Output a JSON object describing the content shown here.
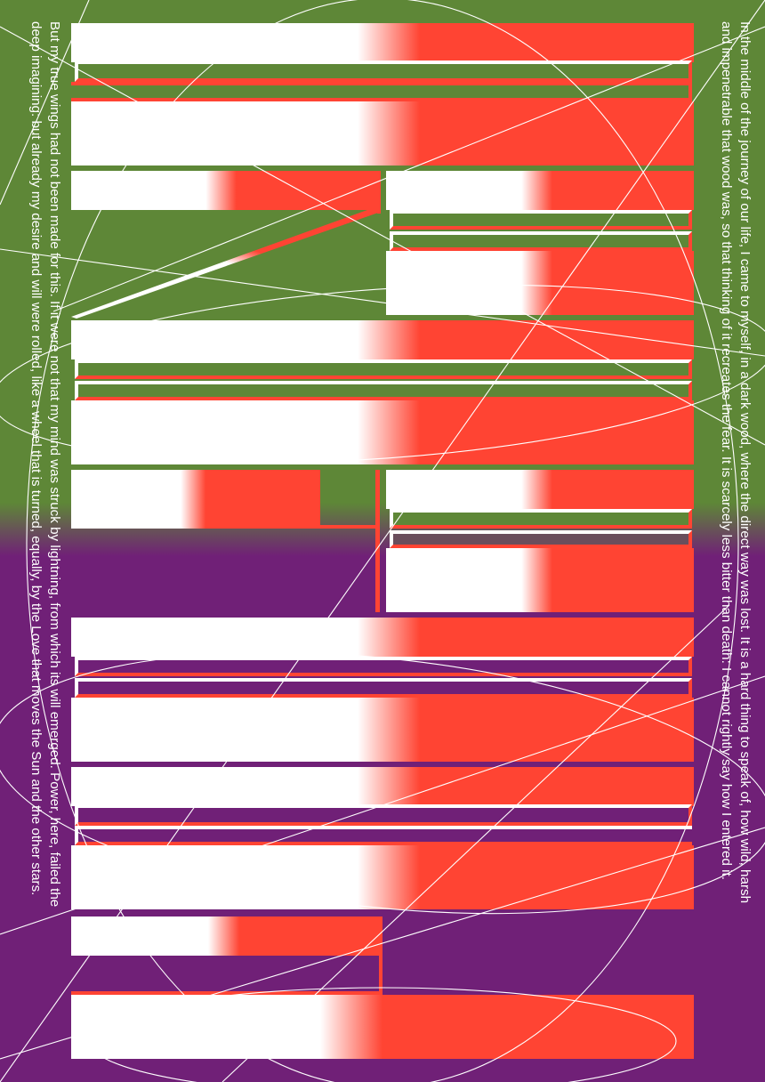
{
  "poster": {
    "colors": {
      "green": "#5e8737",
      "purple": "#702077",
      "red": "#ff4433",
      "white": "#ffffff"
    },
    "right_text": {
      "line1": "In the middle of the journey of our life, I came to myself, in a dark wood, where the direct way was lost. It is a hard thing to speak of, how wild, harsh",
      "line2": "and impenetrable that wood was, so that thinking of it recreates the fear. It is scarcely less bitter than death: I cannot rightly say how I entered it."
    },
    "left_text": {
      "line1": "But my true wings had not been made for this. If it were not that my mind was struck by lightning, from which its will emerged. Power, here, failed the",
      "line2": "deep imagining: but already my desire and will were rolled, like a wheel that is turned, equally, by the Love that moves the Sun and the other stars."
    }
  }
}
